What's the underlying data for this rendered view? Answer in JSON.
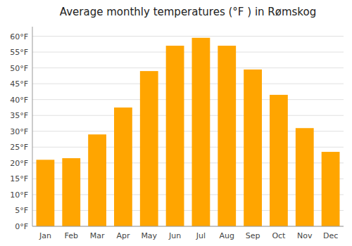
{
  "chart_data": {
    "type": "bar",
    "title": "Average monthly temperatures (°F ) in Rømskog",
    "categories": [
      "Jan",
      "Feb",
      "Mar",
      "Apr",
      "May",
      "Jun",
      "Jul",
      "Aug",
      "Sep",
      "Oct",
      "Nov",
      "Dec"
    ],
    "values": [
      21,
      21.5,
      29,
      37.5,
      49,
      57,
      59.5,
      57,
      49.5,
      41.5,
      31,
      23.5
    ],
    "color": "#FFA500",
    "ylim": [
      0,
      63
    ],
    "yticks": [
      {
        "value": 0,
        "label": "0°F"
      },
      {
        "value": 5,
        "label": "5°F"
      },
      {
        "value": 10,
        "label": "10°F"
      },
      {
        "value": 15,
        "label": "15°F"
      },
      {
        "value": 20,
        "label": "20°F"
      },
      {
        "value": 25,
        "label": "25°F"
      },
      {
        "value": 30,
        "label": "30°F"
      },
      {
        "value": 35,
        "label": "35°F"
      },
      {
        "value": 40,
        "label": "40°F"
      },
      {
        "value": 45,
        "label": "45°F"
      },
      {
        "value": 50,
        "label": "50°F"
      },
      {
        "value": 55,
        "label": "55°F"
      },
      {
        "value": 60,
        "label": "60°F"
      }
    ],
    "grid": true
  }
}
